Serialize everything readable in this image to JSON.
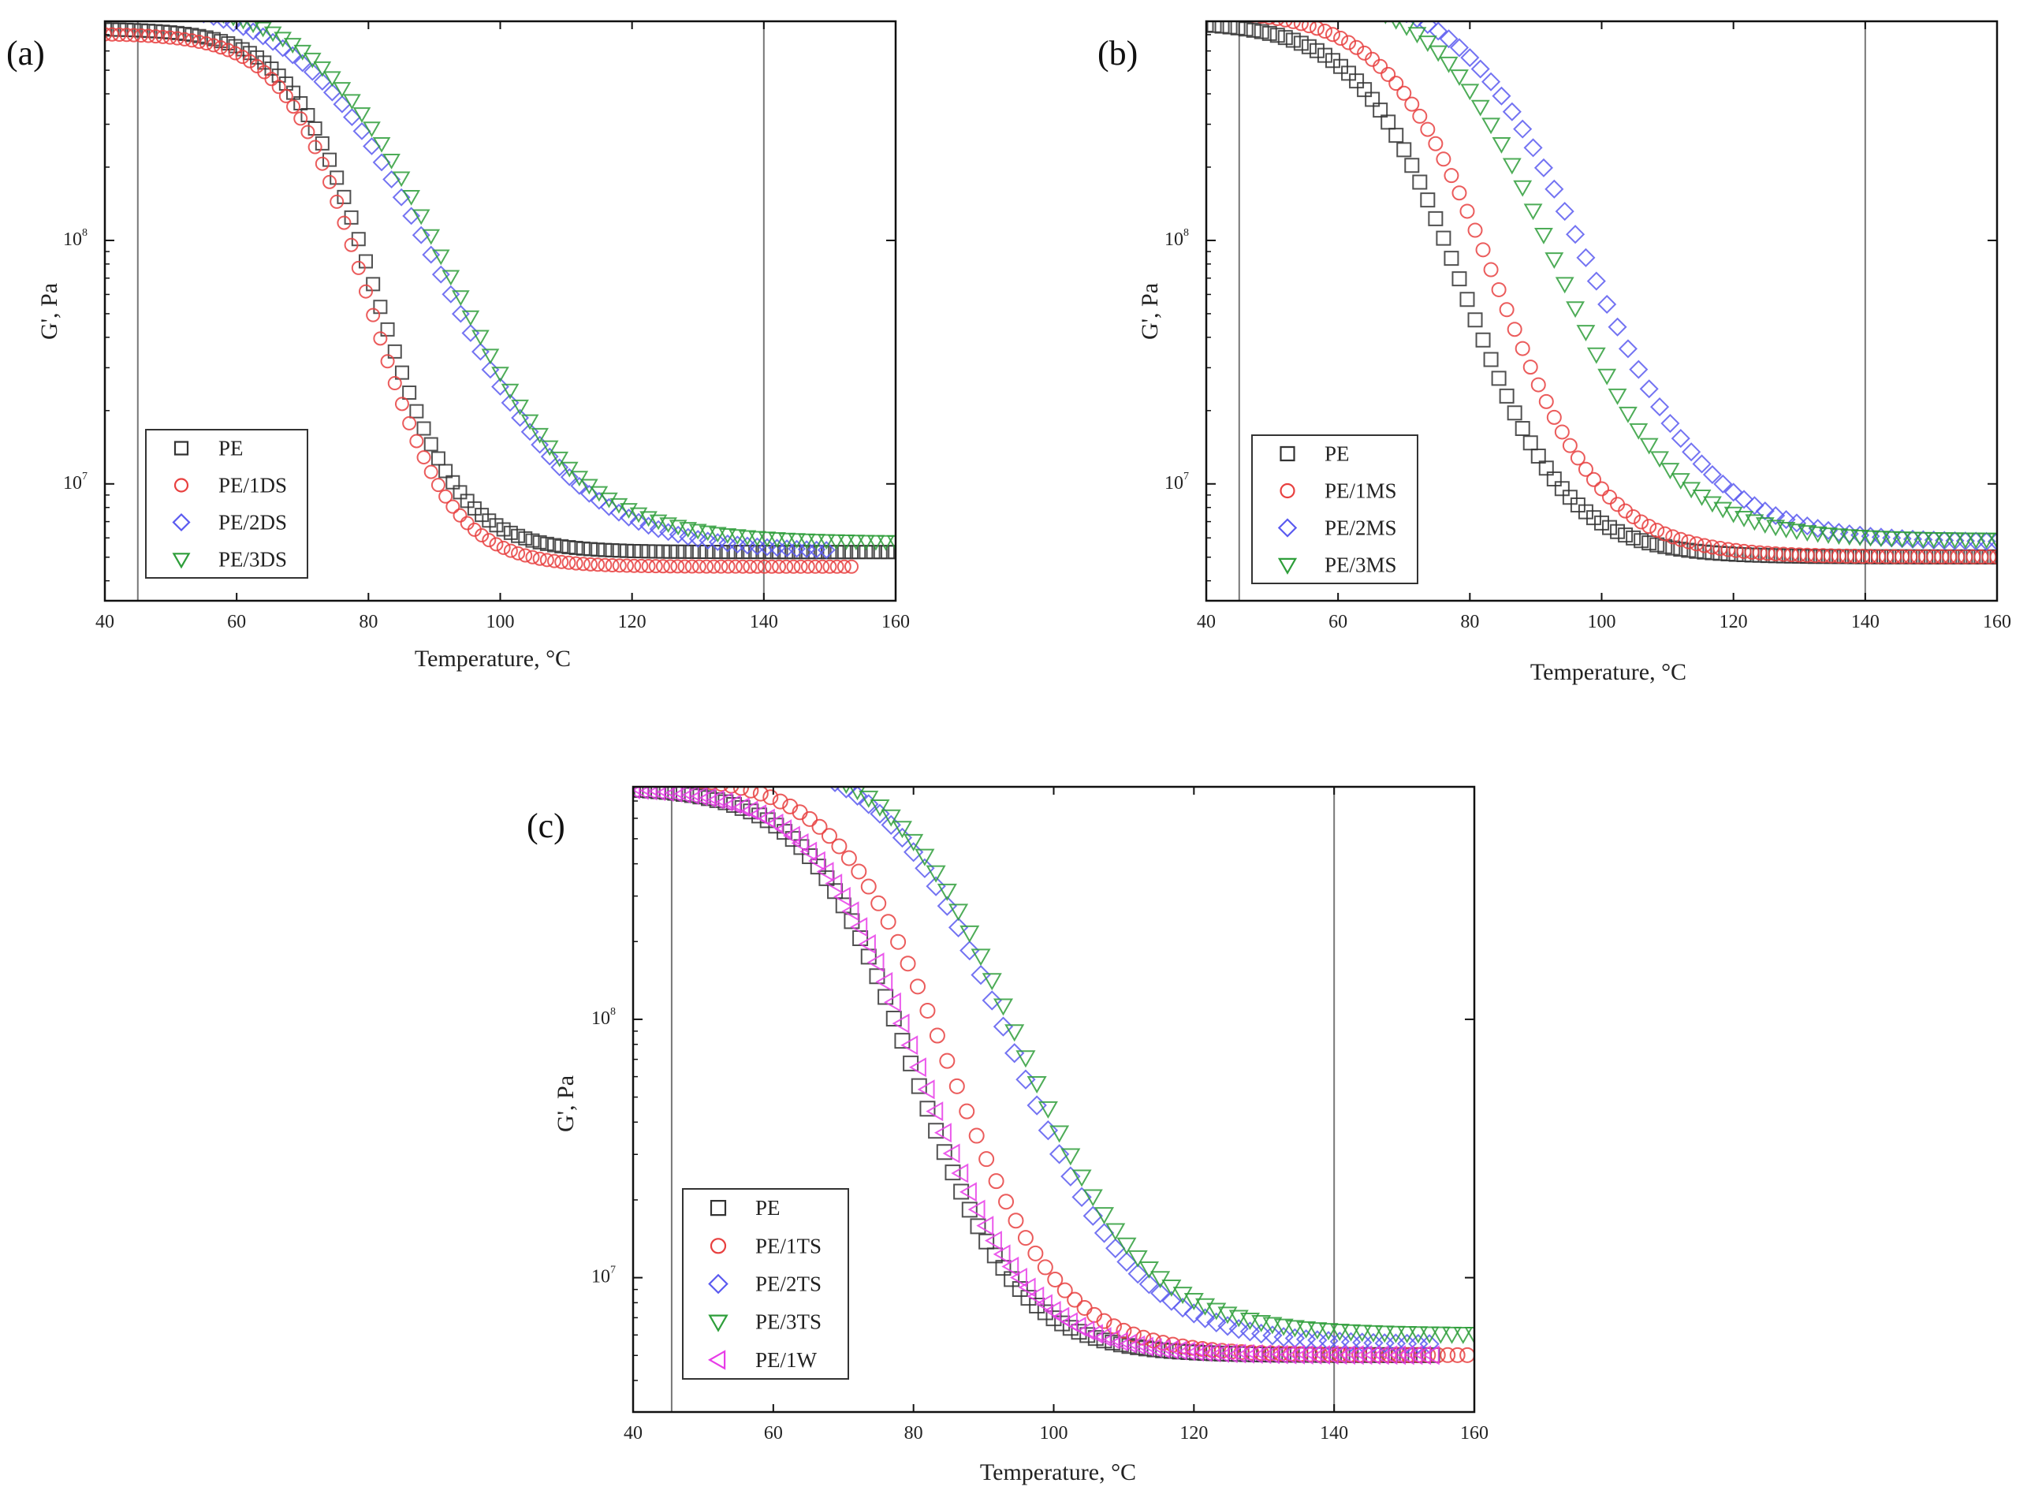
{
  "figure": {
    "charts": [
      {
        "id": "a",
        "label": "(a)",
        "legend": [
          "PE",
          "PE/1DS",
          "PE/2DS",
          "PE/3DS"
        ]
      },
      {
        "id": "b",
        "label": "(b)",
        "legend": [
          "PE",
          "PE/1MS",
          "PE/2MS",
          "PE/3MS"
        ]
      },
      {
        "id": "c",
        "label": "(c)",
        "legend": [
          "PE",
          "PE/1TS",
          "PE/2TS",
          "PE/3TS",
          "PE/1W"
        ]
      }
    ]
  },
  "chart_data": [
    {
      "type": "scatter",
      "panel": "(a)",
      "xlabel": "Temperature, °C",
      "ylabel": "G', Pa",
      "xlim": [
        40,
        160
      ],
      "ylim_log10": [
        6.52,
        8.9
      ],
      "x_ticks": [
        "40",
        "60",
        "80",
        "100",
        "120",
        "140",
        "160"
      ],
      "y_ticks": [
        {
          "base": "10",
          "exp": "8",
          "value": 100000000
        },
        {
          "base": "10",
          "exp": "7",
          "value": 10000000
        }
      ],
      "reference_lines_x": [
        45,
        140
      ],
      "series": [
        {
          "name": "PE",
          "marker": "square",
          "color": "#333333",
          "x_end": 160,
          "x_step": 1.1,
          "log10_high": 8.87,
          "log10_low": 6.72,
          "t_mid": 81,
          "width": 6.3
        },
        {
          "name": "PE/1DS",
          "marker": "circle",
          "color": "#e8403f",
          "x_end": 154,
          "x_step": 1.1,
          "log10_high": 8.85,
          "log10_low": 6.66,
          "t_mid": 80,
          "width": 6.2
        },
        {
          "name": "PE/2DS",
          "marker": "diamond",
          "color": "#5a5af0",
          "x_end": 150,
          "x_step": 1.5,
          "log10_high": 9.0,
          "log10_low": 6.72,
          "t_mid": 91,
          "width": 10.5
        },
        {
          "name": "PE/3DS",
          "marker": "triangle-down",
          "color": "#2e9e3a",
          "x_end": 160,
          "x_step": 1.5,
          "log10_high": 9.0,
          "log10_low": 6.76,
          "t_mid": 92,
          "width": 10.0
        }
      ]
    },
    {
      "type": "scatter",
      "panel": "(b)",
      "xlabel": "Temperature, °C",
      "ylabel": "G', Pa",
      "xlim": [
        40,
        160
      ],
      "ylim_log10": [
        6.52,
        8.9
      ],
      "x_ticks": [
        "40",
        "60",
        "80",
        "100",
        "120",
        "140",
        "160"
      ],
      "y_ticks": [
        {
          "base": "10",
          "exp": "8",
          "value": 100000000
        },
        {
          "base": "10",
          "exp": "7",
          "value": 10000000
        }
      ],
      "reference_lines_x": [
        45,
        140
      ],
      "series": [
        {
          "name": "PE",
          "marker": "square",
          "color": "#333333",
          "x_end": 160,
          "x_step": 1.2,
          "log10_high": 8.9,
          "log10_low": 6.7,
          "t_mid": 79,
          "width": 7.8
        },
        {
          "name": "PE/1MS",
          "marker": "circle",
          "color": "#e8403f",
          "x_end": 160,
          "x_step": 1.2,
          "log10_high": 8.95,
          "log10_low": 6.7,
          "t_mid": 84,
          "width": 8.2
        },
        {
          "name": "PE/2MS",
          "marker": "diamond",
          "color": "#5a5af0",
          "x_end": 160,
          "x_step": 1.6,
          "log10_high": 9.05,
          "log10_low": 6.76,
          "t_mid": 98,
          "width": 9.5
        },
        {
          "name": "PE/3MS",
          "marker": "triangle-down",
          "color": "#2e9e3a",
          "x_end": 160,
          "x_step": 1.6,
          "log10_high": 9.05,
          "log10_low": 6.77,
          "t_mid": 93,
          "width": 9.0
        }
      ]
    },
    {
      "type": "scatter",
      "panel": "(c)",
      "xlabel": "Temperature, °C",
      "ylabel": "G', Pa",
      "xlim": [
        40,
        160
      ],
      "ylim_log10": [
        6.48,
        8.9
      ],
      "x_ticks": [
        "40",
        "60",
        "80",
        "100",
        "120",
        "140",
        "160"
      ],
      "y_ticks": [
        {
          "base": "10",
          "exp": "8",
          "value": 100000000
        },
        {
          "base": "10",
          "exp": "7",
          "value": 10000000
        }
      ],
      "reference_lines_x": [
        45.5,
        140
      ],
      "series": [
        {
          "name": "PE",
          "marker": "square",
          "color": "#333333",
          "x_end": 155,
          "x_step": 1.2,
          "log10_high": 8.9,
          "log10_low": 6.7,
          "t_mid": 80,
          "width": 7.5
        },
        {
          "name": "PE/1TS",
          "marker": "circle",
          "color": "#e8403f",
          "x_end": 160,
          "x_step": 1.4,
          "log10_high": 8.95,
          "log10_low": 6.7,
          "t_mid": 85,
          "width": 8.0
        },
        {
          "name": "PE/2TS",
          "marker": "diamond",
          "color": "#5a5af0",
          "x_end": 155,
          "x_step": 1.6,
          "log10_high": 9.05,
          "log10_low": 6.74,
          "t_mid": 94,
          "width": 9.0
        },
        {
          "name": "PE/3TS",
          "marker": "triangle-down",
          "color": "#2e9e3a",
          "x_end": 160,
          "x_step": 1.6,
          "log10_high": 9.05,
          "log10_low": 6.78,
          "t_mid": 95,
          "width": 9.0
        },
        {
          "name": "PE/1W",
          "marker": "triangle-left",
          "color": "#e83ce8",
          "x_end": 155,
          "x_step": 1.2,
          "log10_high": 8.9,
          "log10_low": 6.7,
          "t_mid": 81,
          "width": 7.7
        }
      ]
    }
  ]
}
